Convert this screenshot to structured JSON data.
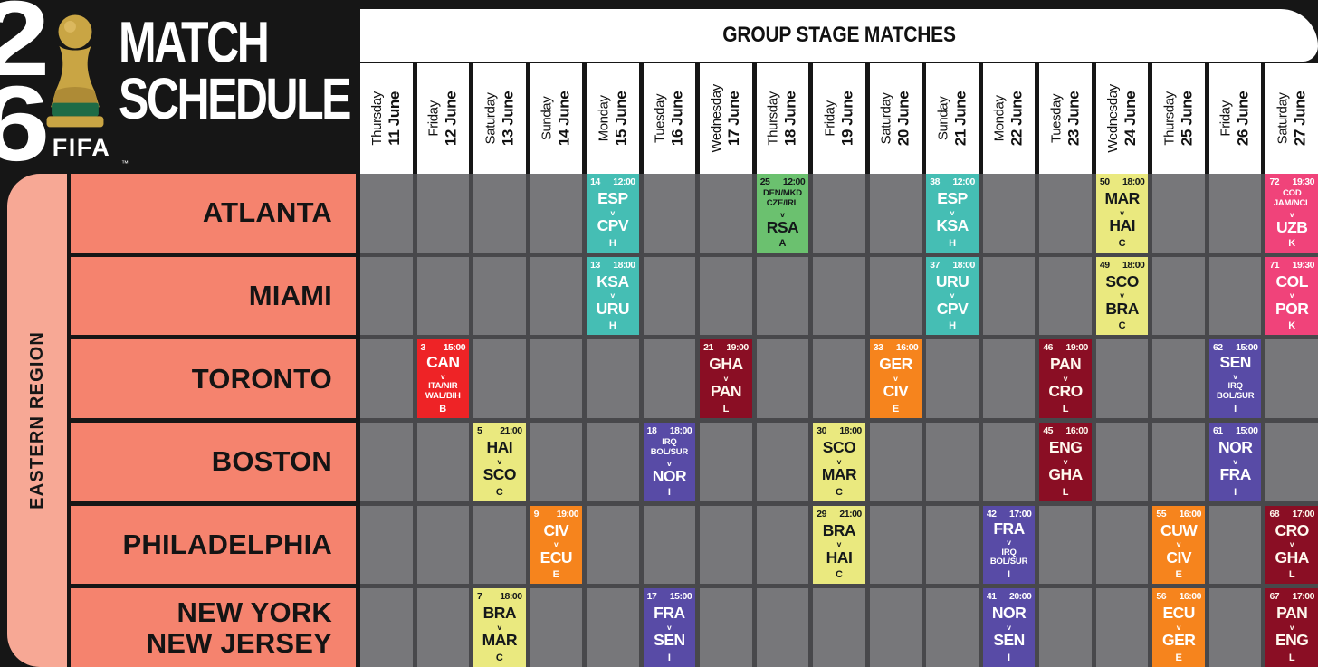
{
  "header": {
    "logo": {
      "badge_digits": [
        "2",
        "6"
      ],
      "fifa_label": "FIFA",
      "trademark": "™"
    },
    "title_line1": "MATCH",
    "title_line2": "SCHEDULE",
    "stage_banner": "GROUP STAGE MATCHES"
  },
  "region": {
    "label": "EASTERN REGION"
  },
  "versus_label": "v",
  "dates": [
    {
      "day": "Thursday",
      "date": "11 June"
    },
    {
      "day": "Friday",
      "date": "12 June"
    },
    {
      "day": "Saturday",
      "date": "13 June"
    },
    {
      "day": "Sunday",
      "date": "14 June"
    },
    {
      "day": "Monday",
      "date": "15 June"
    },
    {
      "day": "Tuesday",
      "date": "16 June"
    },
    {
      "day": "Wednesday",
      "date": "17 June"
    },
    {
      "day": "Thursday",
      "date": "18 June"
    },
    {
      "day": "Friday",
      "date": "19 June"
    },
    {
      "day": "Saturday",
      "date": "20 June"
    },
    {
      "day": "Sunday",
      "date": "21 June"
    },
    {
      "day": "Monday",
      "date": "22 June"
    },
    {
      "day": "Tuesday",
      "date": "23 June"
    },
    {
      "day": "Wednesday",
      "date": "24 June"
    },
    {
      "day": "Thursday",
      "date": "25 June"
    },
    {
      "day": "Friday",
      "date": "26 June"
    },
    {
      "day": "Saturday",
      "date": "27 June"
    }
  ],
  "cities": [
    "ATLANTA",
    "MIAMI",
    "TORONTO",
    "BOSTON",
    "PHILADELPHIA",
    "NEW YORK\nNEW JERSEY"
  ],
  "match_colors": {
    "teal": {
      "bg": "#45BEB4",
      "fg": "#FFFFFF"
    },
    "green": {
      "bg": "#6BC16F",
      "fg": "#14181A"
    },
    "yellow": {
      "bg": "#EAE97F",
      "fg": "#14181A"
    },
    "red": {
      "bg": "#EE2326",
      "fg": "#FFFFFF"
    },
    "maroon": {
      "bg": "#8A0E24",
      "fg": "#FFF8EE"
    },
    "orange": {
      "bg": "#F6841D",
      "fg": "#FFFFFF"
    },
    "purple": {
      "bg": "#584BA6",
      "fg": "#FFFFFF"
    },
    "pink": {
      "bg": "#F0437A",
      "fg": "#FFFFFF"
    }
  },
  "theme_colors": {
    "page_bg": "#161616",
    "grid_gap": "#48484B",
    "empty_cell": "#77777A",
    "city_fill": "#F5836E",
    "region_fill": "#F7A895",
    "header_fill": "#FFFFFF",
    "trophy_gold": "#C9A544",
    "trophy_green": "#1E6B46"
  },
  "matches": [
    {
      "row": 0,
      "col": 4,
      "city": "ATLANTA",
      "number": "14",
      "time": "12:00",
      "home": "ESP",
      "away": "CPV",
      "group": "H",
      "color": "teal"
    },
    {
      "row": 0,
      "col": 7,
      "city": "ATLANTA",
      "number": "25",
      "time": "12:00",
      "home": "DEN/MKD\nCZE/IRL",
      "away": "RSA",
      "group": "A",
      "color": "green"
    },
    {
      "row": 0,
      "col": 10,
      "city": "ATLANTA",
      "number": "38",
      "time": "12:00",
      "home": "ESP",
      "away": "KSA",
      "group": "H",
      "color": "teal"
    },
    {
      "row": 0,
      "col": 13,
      "city": "ATLANTA",
      "number": "50",
      "time": "18:00",
      "home": "MAR",
      "away": "HAI",
      "group": "C",
      "color": "yellow"
    },
    {
      "row": 0,
      "col": 16,
      "city": "ATLANTA",
      "number": "72",
      "time": "19:30",
      "home": "COD\nJAM/NCL",
      "away": "UZB",
      "group": "K",
      "color": "pink"
    },
    {
      "row": 1,
      "col": 4,
      "city": "MIAMI",
      "number": "13",
      "time": "18:00",
      "home": "KSA",
      "away": "URU",
      "group": "H",
      "color": "teal"
    },
    {
      "row": 1,
      "col": 10,
      "city": "MIAMI",
      "number": "37",
      "time": "18:00",
      "home": "URU",
      "away": "CPV",
      "group": "H",
      "color": "teal"
    },
    {
      "row": 1,
      "col": 13,
      "city": "MIAMI",
      "number": "49",
      "time": "18:00",
      "home": "SCO",
      "away": "BRA",
      "group": "C",
      "color": "yellow"
    },
    {
      "row": 1,
      "col": 16,
      "city": "MIAMI",
      "number": "71",
      "time": "19:30",
      "home": "COL",
      "away": "POR",
      "group": "K",
      "color": "pink"
    },
    {
      "row": 2,
      "col": 1,
      "city": "TORONTO",
      "number": "3",
      "time": "15:00",
      "home": "CAN",
      "away": "ITA/NIR\nWAL/BIH",
      "group": "B",
      "color": "red"
    },
    {
      "row": 2,
      "col": 6,
      "city": "TORONTO",
      "number": "21",
      "time": "19:00",
      "home": "GHA",
      "away": "PAN",
      "group": "L",
      "color": "maroon"
    },
    {
      "row": 2,
      "col": 9,
      "city": "TORONTO",
      "number": "33",
      "time": "16:00",
      "home": "GER",
      "away": "CIV",
      "group": "E",
      "color": "orange"
    },
    {
      "row": 2,
      "col": 12,
      "city": "TORONTO",
      "number": "46",
      "time": "19:00",
      "home": "PAN",
      "away": "CRO",
      "group": "L",
      "color": "maroon"
    },
    {
      "row": 2,
      "col": 15,
      "city": "TORONTO",
      "number": "62",
      "time": "15:00",
      "home": "SEN",
      "away": "IRQ\nBOL/SUR",
      "group": "I",
      "color": "purple"
    },
    {
      "row": 3,
      "col": 2,
      "city": "BOSTON",
      "number": "5",
      "time": "21:00",
      "home": "HAI",
      "away": "SCO",
      "group": "C",
      "color": "yellow"
    },
    {
      "row": 3,
      "col": 5,
      "city": "BOSTON",
      "number": "18",
      "time": "18:00",
      "home": "IRQ\nBOL/SUR",
      "away": "NOR",
      "group": "I",
      "color": "purple"
    },
    {
      "row": 3,
      "col": 8,
      "city": "BOSTON",
      "number": "30",
      "time": "18:00",
      "home": "SCO",
      "away": "MAR",
      "group": "C",
      "color": "yellow"
    },
    {
      "row": 3,
      "col": 12,
      "city": "BOSTON",
      "number": "45",
      "time": "16:00",
      "home": "ENG",
      "away": "GHA",
      "group": "L",
      "color": "maroon"
    },
    {
      "row": 3,
      "col": 15,
      "city": "BOSTON",
      "number": "61",
      "time": "15:00",
      "home": "NOR",
      "away": "FRA",
      "group": "I",
      "color": "purple"
    },
    {
      "row": 4,
      "col": 3,
      "city": "PHILADELPHIA",
      "number": "9",
      "time": "19:00",
      "home": "CIV",
      "away": "ECU",
      "group": "E",
      "color": "orange"
    },
    {
      "row": 4,
      "col": 8,
      "city": "PHILADELPHIA",
      "number": "29",
      "time": "21:00",
      "home": "BRA",
      "away": "HAI",
      "group": "C",
      "color": "yellow"
    },
    {
      "row": 4,
      "col": 11,
      "city": "PHILADELPHIA",
      "number": "42",
      "time": "17:00",
      "home": "FRA",
      "away": "IRQ\nBOL/SUR",
      "group": "I",
      "color": "purple"
    },
    {
      "row": 4,
      "col": 14,
      "city": "PHILADELPHIA",
      "number": "55",
      "time": "16:00",
      "home": "CUW",
      "away": "CIV",
      "group": "E",
      "color": "orange"
    },
    {
      "row": 4,
      "col": 16,
      "city": "PHILADELPHIA",
      "number": "68",
      "time": "17:00",
      "home": "CRO",
      "away": "GHA",
      "group": "L",
      "color": "maroon"
    },
    {
      "row": 5,
      "col": 2,
      "city": "NEW YORK NEW JERSEY",
      "number": "7",
      "time": "18:00",
      "home": "BRA",
      "away": "MAR",
      "group": "C",
      "color": "yellow"
    },
    {
      "row": 5,
      "col": 5,
      "city": "NEW YORK NEW JERSEY",
      "number": "17",
      "time": "15:00",
      "home": "FRA",
      "away": "SEN",
      "group": "I",
      "color": "purple"
    },
    {
      "row": 5,
      "col": 11,
      "city": "NEW YORK NEW JERSEY",
      "number": "41",
      "time": "20:00",
      "home": "NOR",
      "away": "SEN",
      "group": "I",
      "color": "purple"
    },
    {
      "row": 5,
      "col": 14,
      "city": "NEW YORK NEW JERSEY",
      "number": "56",
      "time": "16:00",
      "home": "ECU",
      "away": "GER",
      "group": "E",
      "color": "orange"
    },
    {
      "row": 5,
      "col": 16,
      "city": "NEW YORK NEW JERSEY",
      "number": "67",
      "time": "17:00",
      "home": "PAN",
      "away": "ENG",
      "group": "L",
      "color": "maroon"
    }
  ]
}
